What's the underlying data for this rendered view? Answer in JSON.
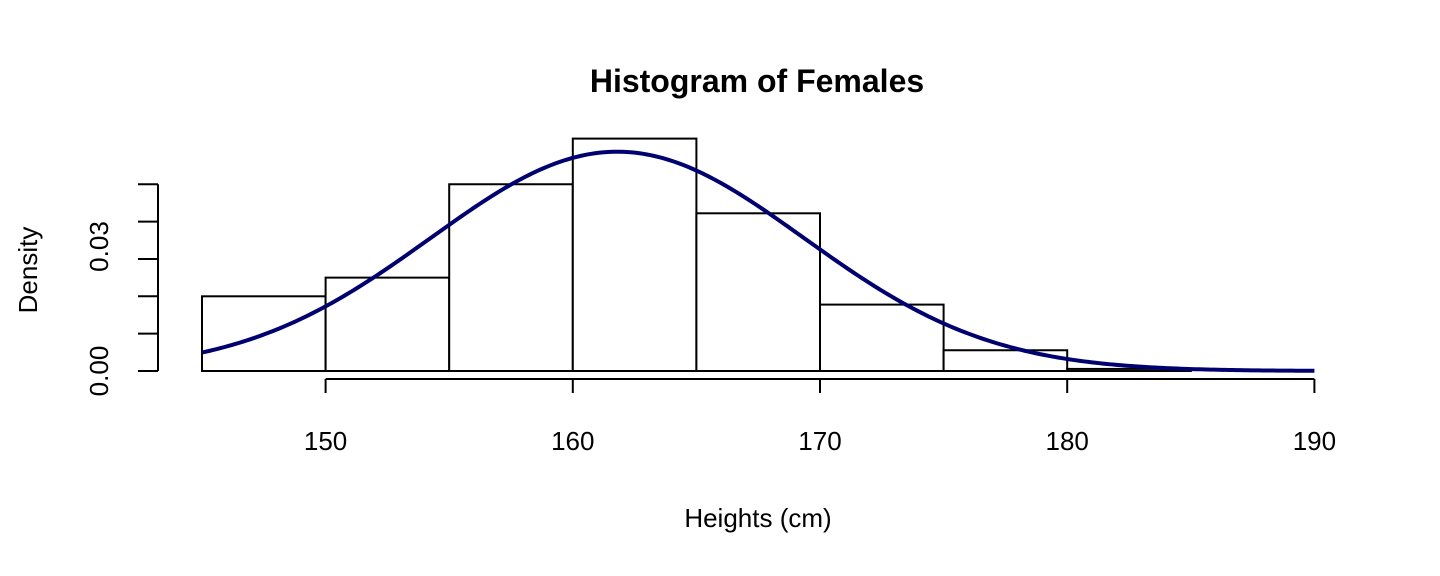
{
  "chart_data": {
    "type": "bar",
    "title": "Histogram of Females",
    "xlabel": "Heights (cm)",
    "ylabel": "Density",
    "bins": [
      {
        "from": 145,
        "to": 150,
        "density": 0.018
      },
      {
        "from": 150,
        "to": 155,
        "density": 0.0225
      },
      {
        "from": 155,
        "to": 160,
        "density": 0.045
      },
      {
        "from": 160,
        "to": 165,
        "density": 0.056
      },
      {
        "from": 165,
        "to": 170,
        "density": 0.038
      },
      {
        "from": 170,
        "to": 175,
        "density": 0.016
      },
      {
        "from": 175,
        "to": 180,
        "density": 0.005
      },
      {
        "from": 180,
        "to": 185,
        "density": 0.0005
      }
    ],
    "curve": {
      "type": "normal-density",
      "mean": 161.8,
      "sd": 7.55,
      "x_range": [
        145,
        190
      ],
      "color": "#000070"
    },
    "x_ticks": [
      "150",
      "160",
      "170",
      "180",
      "190"
    ],
    "y_ticks": [
      "0.00",
      "0.03"
    ],
    "xlim": [
      145,
      190
    ],
    "ylim": [
      0,
      0.05
    ],
    "grid": false
  }
}
